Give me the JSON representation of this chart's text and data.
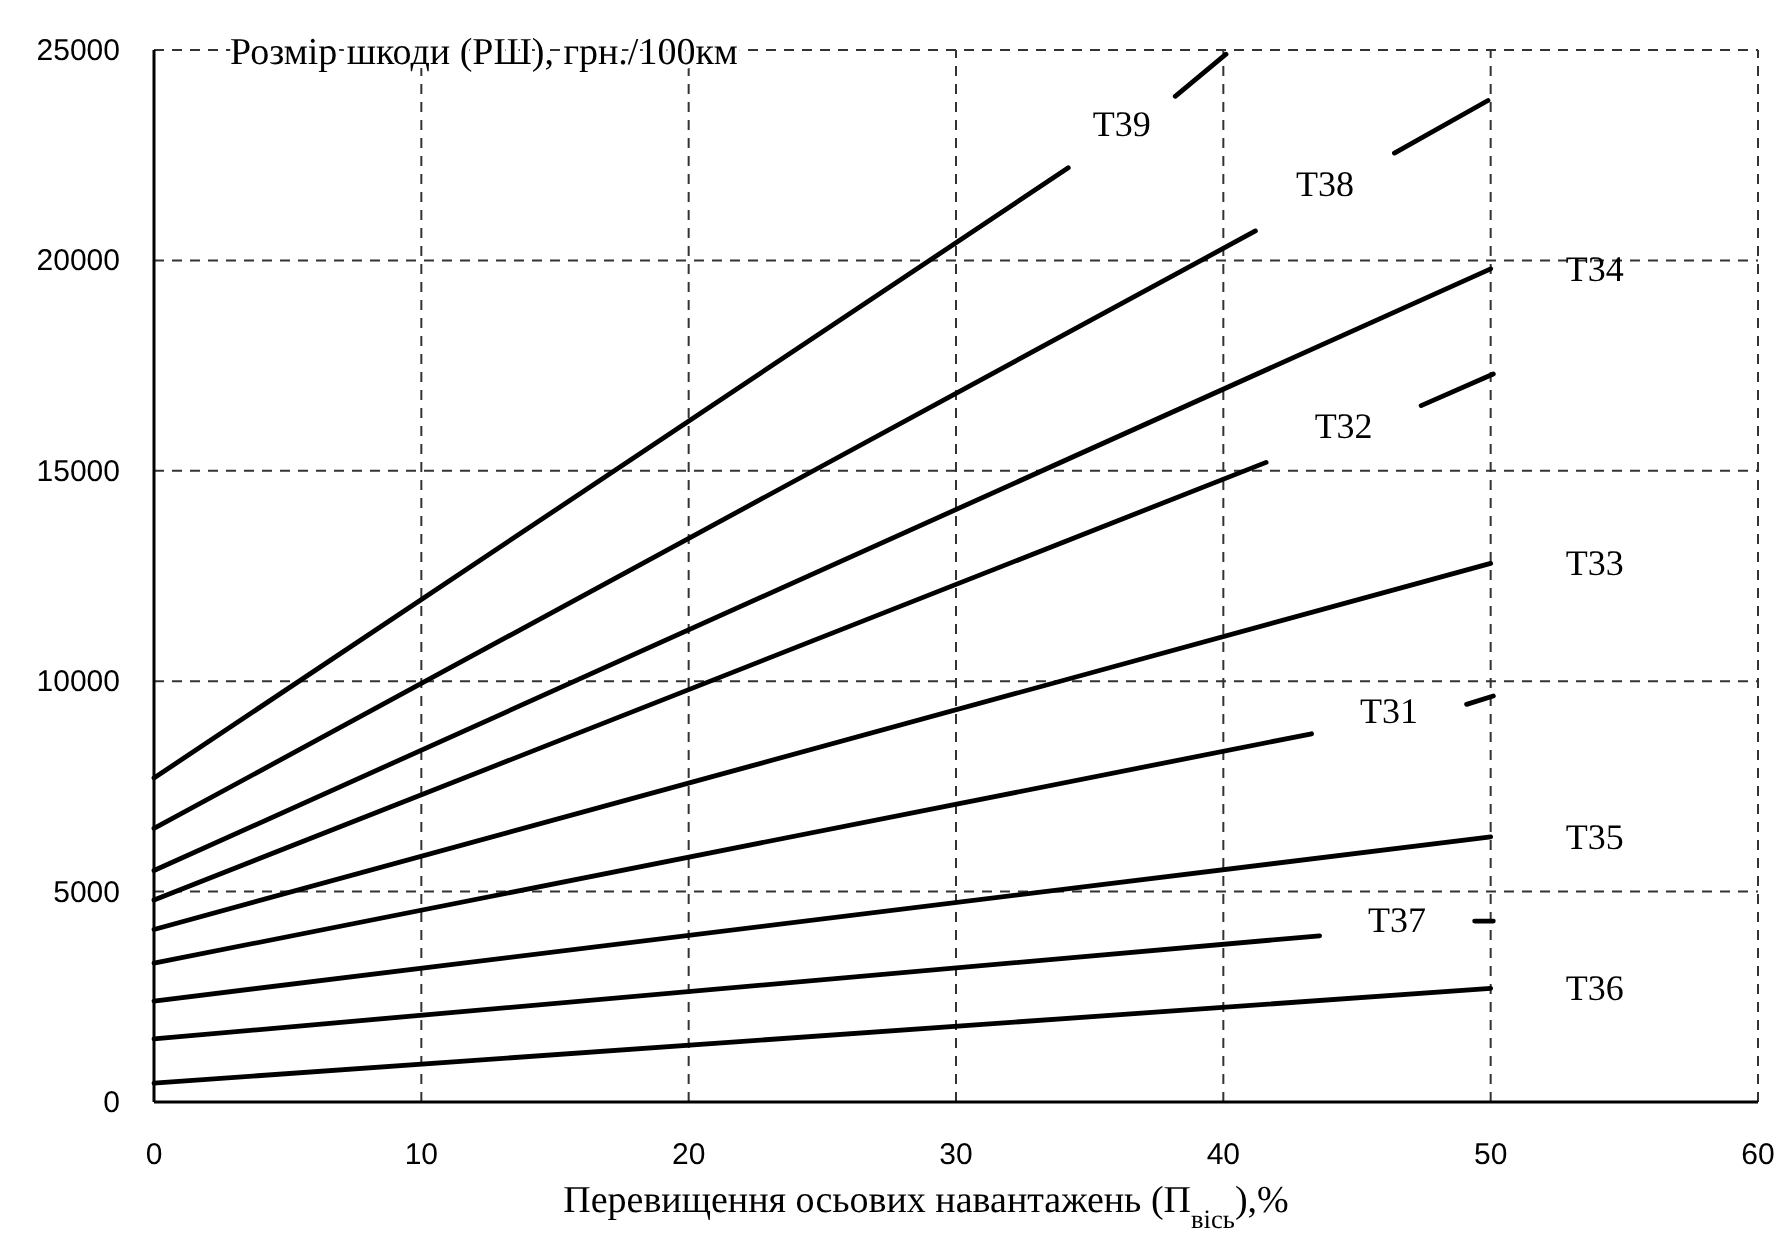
{
  "chart_data": {
    "type": "line",
    "ylabel": "Розмір шкоди (РШ), грн./100км",
    "xlabel": "Перевищення осьових навантажень (П$_{вісь}$),%",
    "xlim": [
      0,
      60
    ],
    "xticks": [
      0,
      10,
      20,
      30,
      40,
      50,
      60
    ],
    "ylim": [
      0,
      25000
    ],
    "yticks": [
      0,
      5000,
      10000,
      15000,
      20000,
      25000
    ],
    "grid": true,
    "line_style": "solid",
    "marker": "none",
    "series": [
      {
        "name": "Т39",
        "color": "#000000",
        "x": [
          0,
          34.2,
          36.2,
          38.2,
          40.1
        ],
        "values": [
          7700,
          22200,
          null,
          23900,
          24900
        ]
      },
      {
        "name": "Т38",
        "color": "#000000",
        "x": [
          0,
          41.2,
          43.8,
          46.4,
          49.9
        ],
        "values": [
          6500,
          20700,
          null,
          22550,
          23800
        ]
      },
      {
        "name": "Т34",
        "color": "#000000",
        "x": [
          0,
          50
        ],
        "values": [
          5500,
          19800
        ]
      },
      {
        "name": "Т32",
        "color": "#000000",
        "x": [
          0,
          41.6,
          44.5,
          47.4,
          50.1
        ],
        "values": [
          4800,
          15200,
          null,
          16550,
          17300
        ]
      },
      {
        "name": "Т33",
        "color": "#000000",
        "x": [
          0,
          50
        ],
        "values": [
          4100,
          12800
        ]
      },
      {
        "name": "Т31",
        "color": "#000000",
        "x": [
          0,
          43.3,
          46.2,
          49.1,
          50.1
        ],
        "values": [
          3300,
          8750,
          null,
          9450,
          9650
        ]
      },
      {
        "name": "Т35",
        "color": "#000000",
        "x": [
          0,
          50
        ],
        "values": [
          2400,
          6300
        ]
      },
      {
        "name": "Т37",
        "color": "#000000",
        "x": [
          0,
          43.6,
          46.5,
          49.4,
          50.1
        ],
        "values": [
          1500,
          3950,
          null,
          4300,
          4300
        ]
      },
      {
        "name": "Т36",
        "color": "#000000",
        "x": [
          0,
          50
        ],
        "values": [
          450,
          2700
        ]
      }
    ]
  }
}
